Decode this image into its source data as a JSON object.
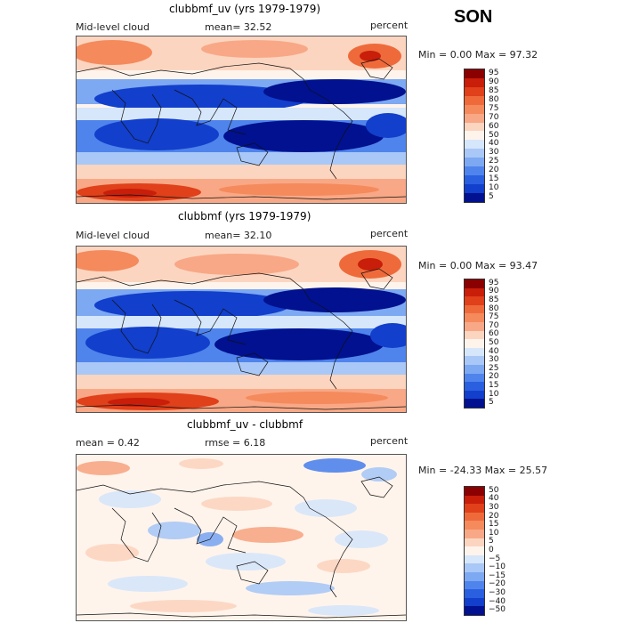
{
  "season": "SON",
  "panels": [
    {
      "title": "clubbmf_uv (yrs 1979-1979)",
      "left_label": "Mid-level cloud",
      "center_label": "mean=  32.52",
      "units": "percent",
      "min_max": "Min =   0.00 Max =  97.32",
      "levels": [
        "95",
        "90",
        "85",
        "80",
        "75",
        "70",
        "60",
        "50",
        "40",
        "30",
        "25",
        "20",
        "15",
        "10",
        "5"
      ],
      "colors": [
        "#8b0000",
        "#c81e0a",
        "#e0401a",
        "#ef6a3a",
        "#f58a5c",
        "#f8a886",
        "#fcd5c0",
        "#fff4ec",
        "#d6e6fb",
        "#a9c8f7",
        "#7da8f2",
        "#4f84ec",
        "#2a5fe0",
        "#123fcb",
        "#01118f"
      ]
    },
    {
      "title": "clubbmf (yrs 1979-1979)",
      "left_label": "Mid-level cloud",
      "center_label": "mean=  32.10",
      "units": "percent",
      "min_max": "Min =   0.00 Max =  93.47",
      "levels": [
        "95",
        "90",
        "85",
        "80",
        "75",
        "70",
        "60",
        "50",
        "40",
        "30",
        "25",
        "20",
        "15",
        "10",
        "5"
      ],
      "colors": [
        "#8b0000",
        "#c81e0a",
        "#e0401a",
        "#ef6a3a",
        "#f58a5c",
        "#f8a886",
        "#fcd5c0",
        "#fff4ec",
        "#d6e6fb",
        "#a9c8f7",
        "#7da8f2",
        "#4f84ec",
        "#2a5fe0",
        "#123fcb",
        "#01118f"
      ]
    },
    {
      "title": "clubbmf_uv - clubbmf",
      "left_label": "mean =   0.42",
      "center_label": "rmse =   6.18",
      "units": "percent",
      "min_max": "Min = -24.33 Max =  25.57",
      "levels": [
        "50",
        "40",
        "30",
        "20",
        "15",
        "10",
        "5",
        "0",
        "−5",
        "−10",
        "−15",
        "−20",
        "−30",
        "−40",
        "−50"
      ],
      "colors": [
        "#8b0000",
        "#c81e0a",
        "#e0401a",
        "#ef6a3a",
        "#f58a5c",
        "#f8a886",
        "#fcd5c0",
        "#fff4ec",
        "#d6e6fb",
        "#a9c8f7",
        "#7da8f2",
        "#4f84ec",
        "#2a5fe0",
        "#123fcb",
        "#01118f"
      ]
    }
  ]
}
